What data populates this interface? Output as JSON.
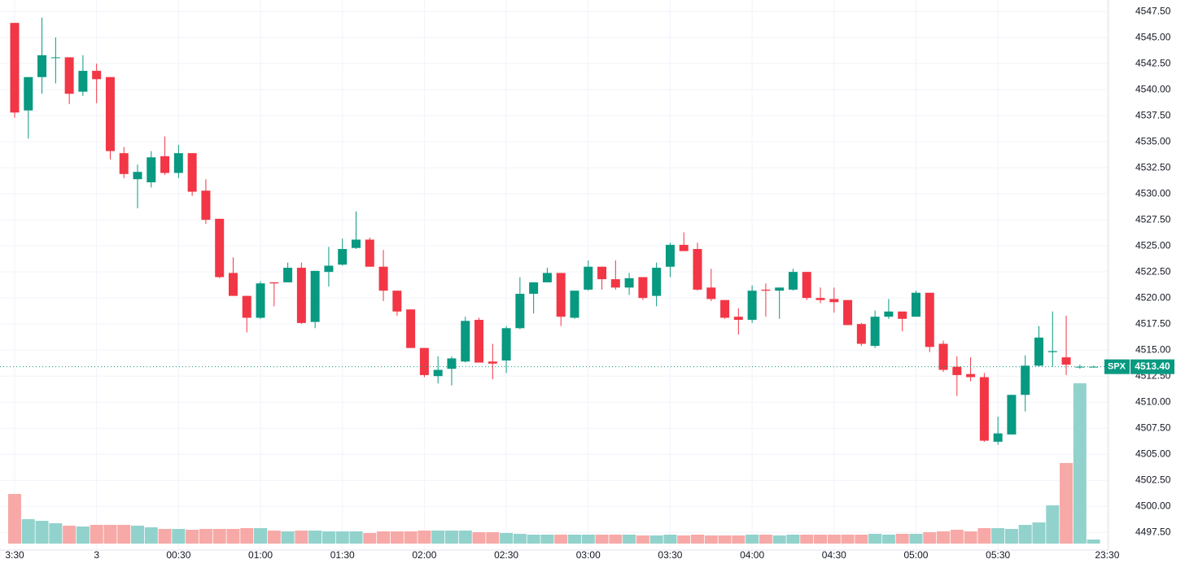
{
  "chart_data": {
    "type": "candlestick",
    "categories": [
      "3:30",
      null,
      null,
      null,
      null,
      null,
      "3",
      null,
      null,
      null,
      null,
      null,
      "00:30",
      null,
      null,
      null,
      null,
      null,
      "01:00",
      null,
      null,
      null,
      null,
      null,
      "01:30",
      null,
      null,
      null,
      null,
      null,
      "02:00",
      null,
      null,
      null,
      null,
      null,
      "02:30",
      null,
      null,
      null,
      null,
      null,
      "03:00",
      null,
      null,
      null,
      null,
      null,
      "03:30",
      null,
      null,
      null,
      null,
      null,
      "04:00",
      null,
      null,
      null,
      null,
      null,
      "04:30",
      null,
      null,
      null,
      null,
      null,
      "05:00",
      null,
      null,
      null,
      null,
      null,
      "05:30",
      null,
      null,
      null,
      null,
      null,
      null,
      null,
      "23:30"
    ],
    "open": [
      4546.4,
      4538.0,
      4541.2,
      4543.1,
      4543.1,
      4539.8,
      4541.8,
      4541.2,
      4533.9,
      4531.4,
      4531.1,
      4533.6,
      4532.0,
      4533.9,
      4530.3,
      4527.6,
      4522.4,
      4520.2,
      4518.1,
      4521.5,
      4521.5,
      4522.9,
      4517.7,
      4522.5,
      4523.2,
      4524.8,
      4525.6,
      4523.0,
      4520.7,
      4518.9,
      4515.2,
      4512.5,
      4513.2,
      4513.9,
      4517.9,
      4513.9,
      4514.0,
      4517.1,
      4520.4,
      4521.5,
      4522.4,
      4518.1,
      4520.8,
      4523.0,
      4521.8,
      4521.0,
      4522.0,
      4520.2,
      4523.0,
      4525.1,
      4524.7,
      4521.0,
      4519.8,
      4518.2,
      4517.9,
      4520.8,
      4520.7,
      4520.8,
      4522.5,
      4520.0,
      4519.9,
      4519.8,
      4517.5,
      4515.4,
      4518.2,
      4518.7,
      4518.2,
      4520.5,
      4515.6,
      4513.4,
      4512.7,
      4512.4,
      4506.2,
      4506.9,
      4510.7,
      4513.5,
      4514.8,
      4514.3,
      4513.4,
      4513.4,
      null
    ],
    "high": [
      4546.4,
      4541.2,
      4546.9,
      4545.0,
      4543.1,
      4543.3,
      4542.5,
      4541.2,
      4534.5,
      4532.8,
      4534.1,
      4535.5,
      4534.7,
      4533.9,
      4531.4,
      4527.6,
      4523.9,
      4520.2,
      4521.6,
      4521.5,
      4523.4,
      4523.4,
      4522.6,
      4524.9,
      4525.7,
      4528.3,
      4525.8,
      4524.6,
      4520.7,
      4518.9,
      4515.2,
      4514.4,
      4514.4,
      4518.2,
      4518.1,
      4515.6,
      4517.3,
      4522.0,
      4521.5,
      4522.9,
      4522.4,
      4520.7,
      4523.6,
      4523.0,
      4523.6,
      4522.4,
      4522.0,
      4523.4,
      4525.3,
      4526.3,
      4525.3,
      4522.8,
      4519.8,
      4519.0,
      4521.2,
      4521.4,
      4521.0,
      4522.8,
      4522.5,
      4521.0,
      4521.0,
      4519.8,
      4517.6,
      4518.8,
      4519.9,
      4518.7,
      4520.7,
      4520.5,
      4515.9,
      4514.4,
      4514.3,
      4512.8,
      4508.6,
      4510.7,
      4514.5,
      4517.3,
      4518.7,
      4518.3,
      4513.6,
      4513.5,
      null
    ],
    "low": [
      4537.3,
      4535.3,
      4539.6,
      4540.6,
      4538.6,
      4539.4,
      4538.7,
      4533.3,
      4531.5,
      4528.6,
      4530.6,
      4531.8,
      4531.5,
      4529.8,
      4527.1,
      4521.9,
      4520.2,
      4516.7,
      4518.0,
      4519.2,
      4521.5,
      4517.5,
      4517.1,
      4521.1,
      4523.1,
      4524.7,
      4523.0,
      4519.7,
      4518.3,
      4515.2,
      4512.4,
      4511.8,
      4511.6,
      4513.8,
      4513.8,
      4512.2,
      4512.8,
      4517.0,
      4518.5,
      4521.5,
      4517.3,
      4518.0,
      4520.7,
      4520.8,
      4520.8,
      4520.3,
      4519.8,
      4519.2,
      4522.0,
      4524.5,
      4520.7,
      4519.7,
      4518.0,
      4516.5,
      4517.6,
      4518.2,
      4518.0,
      4520.7,
      4519.8,
      4519.5,
      4518.6,
      4517.4,
      4515.4,
      4515.2,
      4518.0,
      4516.8,
      4518.2,
      4514.8,
      4512.9,
      4510.6,
      4512.0,
      4506.2,
      4505.9,
      4506.9,
      4509.1,
      4513.4,
      4513.4,
      4512.6,
      4513.2,
      4513.4,
      null
    ],
    "close": [
      4537.8,
      4541.2,
      4543.3,
      4543.1,
      4539.6,
      4541.8,
      4541.0,
      4534.1,
      4531.9,
      4532.1,
      4533.5,
      4532.0,
      4533.9,
      4530.2,
      4527.5,
      4522.0,
      4520.2,
      4518.1,
      4521.4,
      4521.4,
      4522.9,
      4517.6,
      4522.6,
      4523.1,
      4524.7,
      4525.6,
      4523.0,
      4520.7,
      4518.7,
      4515.2,
      4512.6,
      4513.1,
      4514.2,
      4517.8,
      4513.8,
      4513.7,
      4517.1,
      4520.4,
      4521.5,
      4522.4,
      4518.2,
      4520.7,
      4523.0,
      4521.8,
      4521.0,
      4521.9,
      4520.0,
      4522.9,
      4525.1,
      4524.5,
      4520.8,
      4519.9,
      4518.1,
      4517.9,
      4520.7,
      4520.7,
      4521.0,
      4522.5,
      4520.0,
      4519.8,
      4519.6,
      4517.4,
      4515.6,
      4518.2,
      4518.7,
      4518.0,
      4520.5,
      4515.3,
      4513.1,
      4512.6,
      4512.4,
      4506.3,
      4507.0,
      4510.7,
      4513.5,
      4516.2,
      4514.9,
      4513.6,
      4513.4,
      4513.4,
      null
    ],
    "volume": [
      61,
      30,
      28,
      25,
      22,
      21,
      23,
      23,
      23,
      22,
      20,
      18,
      18,
      17,
      18,
      18,
      18,
      19,
      19,
      16,
      15,
      16,
      16,
      15,
      15,
      15,
      13,
      15,
      15,
      15,
      16,
      16,
      16,
      16,
      14,
      14,
      13,
      12,
      11,
      11,
      11,
      11,
      11,
      11,
      11,
      11,
      10,
      10,
      11,
      10,
      11,
      10,
      10,
      10,
      11,
      11,
      10,
      11,
      11,
      11,
      11,
      11,
      11,
      12,
      11,
      12,
      12,
      14,
      15,
      17,
      15,
      19,
      19,
      18,
      23,
      26,
      47,
      99,
      197,
      5,
      null
    ],
    "yticks": [
      {
        "value": 4547.5,
        "label": "4547.50"
      },
      {
        "value": 4545,
        "label": "4545.00"
      },
      {
        "value": 4542.5,
        "label": "4542.50"
      },
      {
        "value": 4540,
        "label": "4540.00"
      },
      {
        "value": 4537.5,
        "label": "4537.50"
      },
      {
        "value": 4535,
        "label": "4535.00"
      },
      {
        "value": 4532.5,
        "label": "4532.50"
      },
      {
        "value": 4530,
        "label": "4530.00"
      },
      {
        "value": 4527.5,
        "label": "4527.50"
      },
      {
        "value": 4525,
        "label": "4525.00"
      },
      {
        "value": 4522.5,
        "label": "4522.50"
      },
      {
        "value": 4520,
        "label": "4520.00"
      },
      {
        "value": 4517.5,
        "label": "4517.50"
      },
      {
        "value": 4515,
        "label": "4515.00"
      },
      {
        "value": 4512.5,
        "label": "4512.50"
      },
      {
        "value": 4510,
        "label": "4510.00"
      },
      {
        "value": 4507.5,
        "label": "4507.50"
      },
      {
        "value": 4505,
        "label": "4505.00"
      },
      {
        "value": 4502.5,
        "label": "4502.50"
      },
      {
        "value": 4500,
        "label": "4500.00"
      },
      {
        "value": 4497.5,
        "label": "4497.50"
      }
    ],
    "ylim": [
      4495.8,
      4548.6
    ],
    "symbol": "SPX",
    "last_price": {
      "value": 4513.4,
      "label": "4513.40"
    },
    "grid": true,
    "up_color": "#089981",
    "down_color": "#f23645",
    "volume_up_color": "#92d2cc",
    "volume_down_color": "#f7a9a7"
  }
}
